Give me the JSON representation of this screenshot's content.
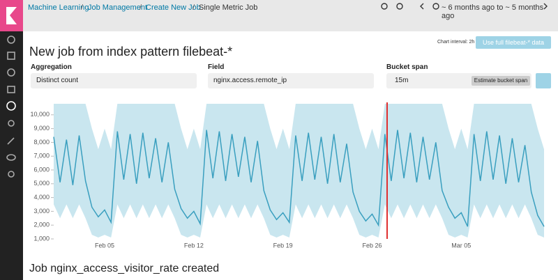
{
  "breadcrumbs": [
    "Machine Learning",
    "Job Management",
    "Create New Job",
    "Single Metric Job"
  ],
  "time_range": "~ 6 months ago to ~ 5 months ago",
  "title": "New job from index pattern filebeat-*",
  "chart_interval": "Chart interval: 2h",
  "full_data_button": "Use full filebeat-* data",
  "form": {
    "aggregation": {
      "label": "Aggregation",
      "value": "Distinct count"
    },
    "field": {
      "label": "Field",
      "value": "nginx.access.remote_ip"
    },
    "bucket_span": {
      "label": "Bucket span",
      "value": "15m",
      "button": "Estimate bucket span"
    }
  },
  "chart_data": {
    "type": "line",
    "color": "#3a9fbf",
    "band_color": "#c9e6ef",
    "ylim": [
      1000,
      10900
    ],
    "yticks": [
      {
        "value": 1000,
        "label": "1,000"
      },
      {
        "value": 2000,
        "label": "2,000"
      },
      {
        "value": 3000,
        "label": "3,000"
      },
      {
        "value": 4000,
        "label": "4,000"
      },
      {
        "value": 5000,
        "label": "5,000"
      },
      {
        "value": 6000,
        "label": "6,000"
      },
      {
        "value": 7000,
        "label": "7,000"
      },
      {
        "value": 8000,
        "label": "8,000"
      },
      {
        "value": 9000,
        "label": "9,000"
      },
      {
        "value": 10000,
        "label": "10,000"
      }
    ],
    "categories": [
      null,
      null,
      null,
      null,
      null,
      null,
      null,
      null,
      "Feb 05",
      null,
      null,
      null,
      null,
      null,
      null,
      null,
      null,
      null,
      null,
      null,
      null,
      null,
      "Feb 12",
      null,
      null,
      null,
      null,
      null,
      null,
      null,
      null,
      null,
      null,
      null,
      null,
      null,
      "Feb 19",
      null,
      null,
      null,
      null,
      null,
      null,
      null,
      null,
      null,
      null,
      null,
      null,
      null,
      "Feb 26",
      null,
      null,
      null,
      null,
      null,
      null,
      null,
      null,
      null,
      null,
      null,
      null,
      null,
      "Mar 05",
      null,
      null,
      null,
      null,
      null,
      null,
      null,
      null,
      null,
      null,
      null,
      null,
      null
    ],
    "values": [
      8400,
      5100,
      8200,
      4900,
      8500,
      5200,
      3300,
      2600,
      3100,
      2200,
      8800,
      5300,
      8600,
      5000,
      8700,
      5400,
      8300,
      5100,
      8000,
      4600,
      3200,
      2500,
      3000,
      2100,
      8900,
      5400,
      8800,
      5200,
      8600,
      5500,
      8400,
      5100,
      8100,
      4500,
      3100,
      2400,
      2900,
      2200,
      8500,
      5200,
      8700,
      5300,
      8400,
      5000,
      8600,
      5100,
      7900,
      4400,
      3000,
      2300,
      2800,
      2000,
      8600,
      5200,
      8900,
      5400,
      8700,
      5100,
      8400,
      5300,
      8000,
      4500,
      3300,
      2500,
      2900,
      1900,
      8600,
      5200,
      8800,
      5300,
      8500,
      5000,
      8300,
      5100,
      7800,
      4400,
      2700,
      1900
    ],
    "upper": [
      10800,
      10800,
      10800,
      10800,
      10800,
      10800,
      9000,
      7500,
      9000,
      7500,
      10800,
      10800,
      10800,
      10800,
      10800,
      10800,
      10800,
      10800,
      10800,
      10800,
      9000,
      7500,
      9000,
      7500,
      10800,
      10800,
      10800,
      10800,
      10800,
      10800,
      10800,
      10800,
      10800,
      10800,
      9000,
      7500,
      9000,
      7500,
      10800,
      10800,
      10800,
      10800,
      10800,
      10800,
      10800,
      10800,
      10800,
      10800,
      9000,
      7500,
      9000,
      7500,
      10800,
      10800,
      10800,
      10800,
      10800,
      10800,
      10800,
      10800,
      10800,
      10800,
      9000,
      7500,
      9000,
      7500,
      10800,
      10800,
      10800,
      10800,
      10800,
      10800,
      10800,
      10800,
      10800,
      10800,
      9000,
      7500
    ],
    "lower": [
      3500,
      2500,
      3500,
      2500,
      3500,
      2500,
      1300,
      1100,
      1300,
      1100,
      3500,
      2500,
      3500,
      2500,
      3500,
      2500,
      3500,
      2500,
      3500,
      2500,
      1300,
      1100,
      1300,
      1100,
      3500,
      2500,
      3500,
      2500,
      3500,
      2500,
      3500,
      2500,
      3500,
      2500,
      1300,
      1100,
      1300,
      1100,
      3500,
      2500,
      3500,
      2500,
      3500,
      2500,
      3500,
      2500,
      3500,
      2500,
      1300,
      1100,
      1300,
      1100,
      3500,
      2500,
      3500,
      2500,
      3500,
      2500,
      3500,
      2500,
      3500,
      2500,
      1300,
      1100,
      1300,
      1100,
      3500,
      2500,
      3500,
      2500,
      3500,
      2500,
      3500,
      2500,
      3500,
      2500,
      1300,
      1100
    ]
  },
  "status": "Job nginx_access_visitor_rate created"
}
